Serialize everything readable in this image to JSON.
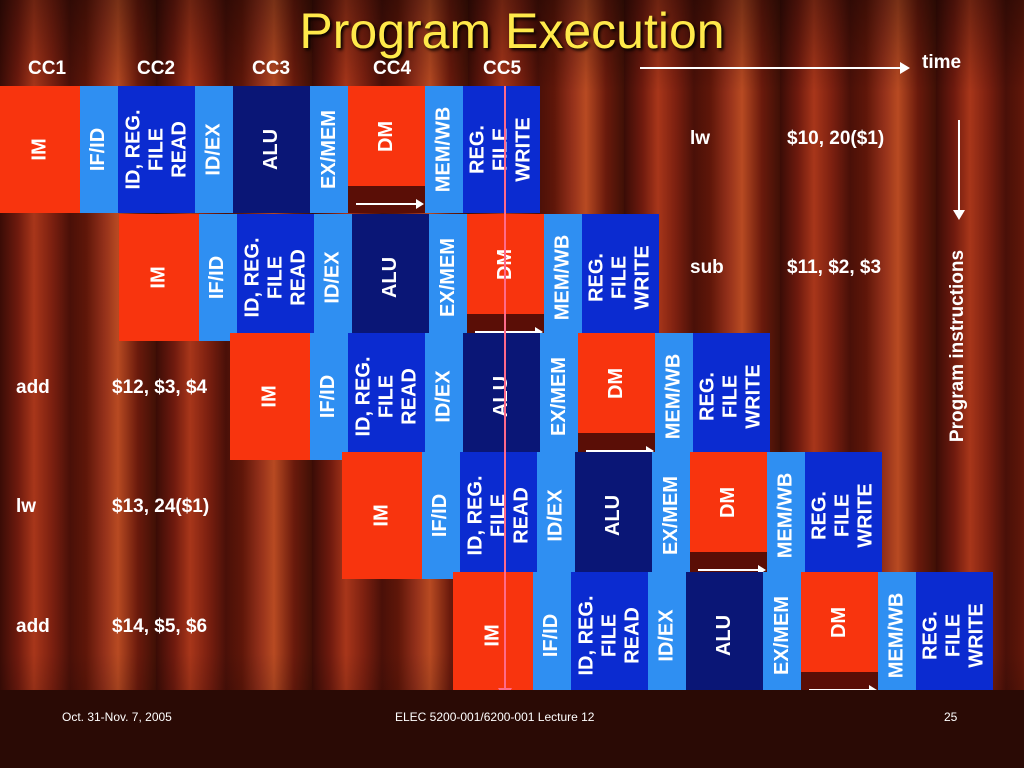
{
  "title": "Program Execution",
  "clock_cycles": [
    "CC1",
    "CC2",
    "CC3",
    "CC4",
    "CC5"
  ],
  "time_label": "time",
  "program_label": "Program instructions",
  "stages": {
    "im": "IM",
    "ifid": "IF/ID",
    "regread": "ID, REG.\nFILE\nREAD",
    "idex": "ID/EX",
    "alu": "ALU",
    "exmem": "EX/MEM",
    "dm": "DM",
    "memwb": "MEM/WB",
    "regwrite": "REG.\nFILE\nWRITE"
  },
  "instructions": [
    {
      "op": "lw",
      "args": "$10, 20($1)"
    },
    {
      "op": "sub",
      "args": "$11, $2, $3"
    },
    {
      "op": "add",
      "args": "$12, $3, $4"
    },
    {
      "op": "lw",
      "args": "$13, 24($1)"
    },
    {
      "op": "add",
      "args": "$14, $5, $6"
    }
  ],
  "footer": {
    "date": "Oct. 31-Nov. 7, 2005",
    "course": "ELEC 5200-001/6200-001 Lecture 12",
    "page": "25"
  }
}
